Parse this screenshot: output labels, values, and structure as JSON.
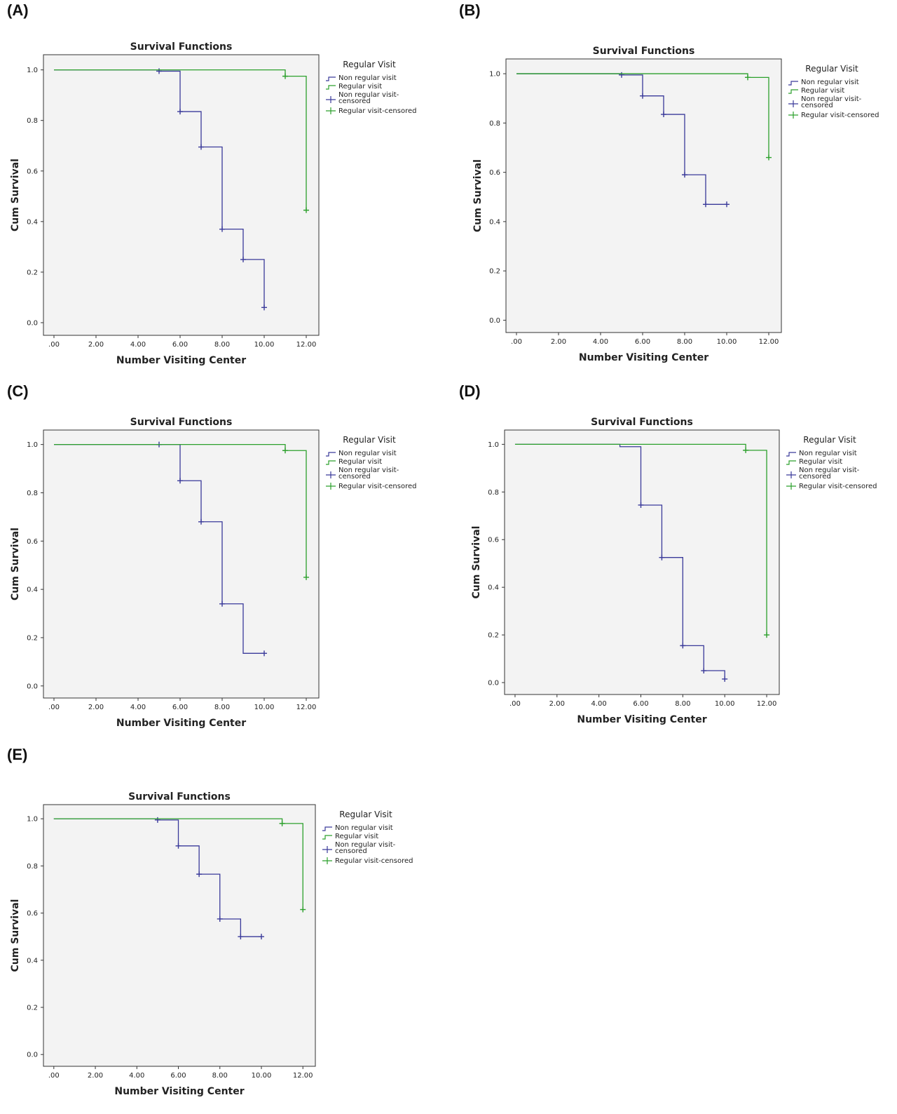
{
  "colors": {
    "non_regular": "#3a3a9a",
    "regular": "#2ca02c",
    "plot_bg": "#f3f3f3"
  },
  "chart_data": [
    {
      "label": "(A)",
      "type": "line",
      "title": "Survival Functions",
      "xlabel": "Number Visiting Center",
      "ylabel": "Cum Survival",
      "xlim": [
        -0.5,
        12.6
      ],
      "ylim": [
        -0.05,
        1.06
      ],
      "xticks": [
        0,
        2,
        4,
        6,
        8,
        10,
        12
      ],
      "xtick_labels": [
        ".00",
        "2.00",
        "4.00",
        "6.00",
        "8.00",
        "10.00",
        "12.00"
      ],
      "yticks": [
        0,
        0.2,
        0.4,
        0.6,
        0.8,
        1.0
      ],
      "ytick_labels": [
        "0.0",
        "0.2",
        "0.4",
        "0.6",
        "0.8",
        "1.0"
      ],
      "legend": {
        "title": "Regular Visit",
        "items": [
          "Non regular visit",
          "Regular visit",
          "Non regular visit-censored",
          "Regular visit-censored"
        ]
      },
      "series": [
        {
          "name": "Non regular visit",
          "x": [
            0,
            5,
            6,
            7,
            8,
            9,
            10
          ],
          "y": [
            1.0,
            0.995,
            0.835,
            0.695,
            0.37,
            0.25,
            0.06
          ],
          "censored_x": [
            5,
            6,
            7,
            8,
            9,
            10
          ]
        },
        {
          "name": "Regular visit",
          "x": [
            0,
            11,
            12
          ],
          "y": [
            1.0,
            0.975,
            0.445
          ],
          "censored_x": [
            11,
            12
          ]
        }
      ]
    },
    {
      "label": "(B)",
      "type": "line",
      "title": "Survival Functions",
      "xlabel": "Number Visiting Center",
      "ylabel": "Cum Survival",
      "xlim": [
        -0.5,
        12.6
      ],
      "ylim": [
        -0.05,
        1.06
      ],
      "xticks": [
        0,
        2,
        4,
        6,
        8,
        10,
        12
      ],
      "xtick_labels": [
        ".00",
        "2.00",
        "4.00",
        "6.00",
        "8.00",
        "10.00",
        "12.00"
      ],
      "yticks": [
        0,
        0.2,
        0.4,
        0.6,
        0.8,
        1.0
      ],
      "ytick_labels": [
        "0.0",
        "0.2",
        "0.4",
        "0.6",
        "0.8",
        "1.0"
      ],
      "legend": {
        "title": "Regular Visit",
        "items": [
          "Non regular visit",
          "Regular visit",
          "Non regular visit-censored",
          "Regular visit-censored"
        ]
      },
      "series": [
        {
          "name": "Non regular visit",
          "x": [
            0,
            5,
            6,
            7,
            8,
            9,
            10
          ],
          "y": [
            1.0,
            0.995,
            0.91,
            0.835,
            0.59,
            0.47,
            0.47
          ],
          "censored_x": [
            5,
            6,
            7,
            8,
            9,
            10
          ]
        },
        {
          "name": "Regular visit",
          "x": [
            0,
            11,
            12
          ],
          "y": [
            1.0,
            0.985,
            0.66
          ],
          "censored_x": [
            11,
            12
          ]
        }
      ]
    },
    {
      "label": "(C)",
      "type": "line",
      "title": "Survival Functions",
      "xlabel": "Number Visiting Center",
      "ylabel": "Cum Survival",
      "xlim": [
        -0.5,
        12.6
      ],
      "ylim": [
        -0.05,
        1.06
      ],
      "xticks": [
        0,
        2,
        4,
        6,
        8,
        10,
        12
      ],
      "xtick_labels": [
        ".00",
        "2.00",
        "4.00",
        "6.00",
        "8.00",
        "10.00",
        "12.00"
      ],
      "yticks": [
        0,
        0.2,
        0.4,
        0.6,
        0.8,
        1.0
      ],
      "ytick_labels": [
        "0.0",
        "0.2",
        "0.4",
        "0.6",
        "0.8",
        "1.0"
      ],
      "legend": {
        "title": "Regular Visit",
        "items": [
          "Non regular visit",
          "Regular visit",
          "Non regular visit-censored",
          "Regular visit-censored"
        ]
      },
      "series": [
        {
          "name": "Non regular visit",
          "x": [
            0,
            5,
            6,
            7,
            8,
            9,
            10
          ],
          "y": [
            1.0,
            1.0,
            0.85,
            0.68,
            0.34,
            0.135,
            0.135
          ],
          "censored_x": [
            5,
            6,
            7,
            8,
            10
          ]
        },
        {
          "name": "Regular visit",
          "x": [
            0,
            11,
            12
          ],
          "y": [
            1.0,
            0.975,
            0.45
          ],
          "censored_x": [
            11,
            12
          ]
        }
      ]
    },
    {
      "label": "(D)",
      "type": "line",
      "title": "Survival Functions",
      "xlabel": "Number Visiting Center",
      "ylabel": "Cum Survival",
      "xlim": [
        -0.5,
        12.6
      ],
      "ylim": [
        -0.05,
        1.06
      ],
      "xticks": [
        0,
        2,
        4,
        6,
        8,
        10,
        12
      ],
      "xtick_labels": [
        ".00",
        "2.00",
        "4.00",
        "6.00",
        "8.00",
        "10.00",
        "12.00"
      ],
      "yticks": [
        0,
        0.2,
        0.4,
        0.6,
        0.8,
        1.0
      ],
      "ytick_labels": [
        "0.0",
        "0.2",
        "0.4",
        "0.6",
        "0.8",
        "1.0"
      ],
      "legend": {
        "title": "Regular Visit",
        "items": [
          "Non regular visit",
          "Regular visit",
          "Non regular visit-censored",
          "Regular visit-censored"
        ]
      },
      "series": [
        {
          "name": "Non regular visit",
          "x": [
            0,
            5,
            6,
            7,
            8,
            9,
            10
          ],
          "y": [
            1.0,
            0.99,
            0.745,
            0.525,
            0.155,
            0.05,
            0.015
          ],
          "censored_x": [
            6,
            7,
            8,
            9,
            10
          ]
        },
        {
          "name": "Regular visit",
          "x": [
            0,
            11,
            12
          ],
          "y": [
            1.0,
            0.975,
            0.2
          ],
          "censored_x": [
            11,
            12
          ]
        }
      ]
    },
    {
      "label": "(E)",
      "type": "line",
      "title": "Survival Functions",
      "xlabel": "Number Visiting Center",
      "ylabel": "Cum Survival",
      "xlim": [
        -0.5,
        12.6
      ],
      "ylim": [
        -0.05,
        1.06
      ],
      "xticks": [
        0,
        2,
        4,
        6,
        8,
        10,
        12
      ],
      "xtick_labels": [
        ".00",
        "2.00",
        "4.00",
        "6.00",
        "8.00",
        "10.00",
        "12.00"
      ],
      "yticks": [
        0,
        0.2,
        0.4,
        0.6,
        0.8,
        1.0
      ],
      "ytick_labels": [
        "0.0",
        "0.2",
        "0.4",
        "0.6",
        "0.8",
        "1.0"
      ],
      "legend": {
        "title": "Regular Visit",
        "items": [
          "Non regular visit",
          "Regular visit",
          "Non regular visit-censored",
          "Regular visit-censored"
        ]
      },
      "series": [
        {
          "name": "Non regular visit",
          "x": [
            0,
            5,
            6,
            7,
            8,
            9,
            10
          ],
          "y": [
            1.0,
            0.995,
            0.885,
            0.765,
            0.575,
            0.5,
            0.5
          ],
          "censored_x": [
            5,
            6,
            7,
            8,
            9,
            10
          ]
        },
        {
          "name": "Regular visit",
          "x": [
            0,
            11,
            12
          ],
          "y": [
            1.0,
            0.98,
            0.615
          ],
          "censored_x": [
            11,
            12
          ]
        }
      ]
    }
  ]
}
